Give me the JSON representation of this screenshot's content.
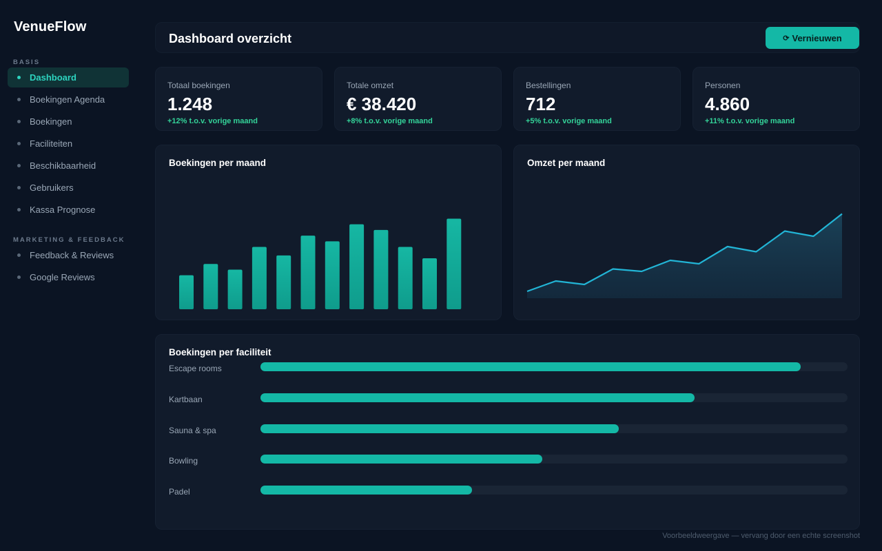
{
  "app": {
    "name": "VenueFlow"
  },
  "sidebar": {
    "sections": [
      {
        "label": "BASIS",
        "items": [
          "Dashboard",
          "Boekingen Agenda",
          "Boekingen",
          "Faciliteiten",
          "Beschikbaarheid",
          "Gebruikers",
          "Kassa Prognose"
        ]
      },
      {
        "label": "MARKETING & FEEDBACK",
        "items": [
          "Feedback & Reviews",
          "Google Reviews"
        ]
      }
    ],
    "active_item": "Dashboard"
  },
  "header": {
    "title": "Dashboard overzicht",
    "refresh_icon": "refresh-icon",
    "refresh_label": "Vernieuwen"
  },
  "stats": [
    {
      "label": "Totaal boekingen",
      "value": "1.248",
      "delta": "+12% t.o.v. vorige maand"
    },
    {
      "label": "Totale omzet",
      "value": "€ 38.420",
      "delta": "+8% t.o.v. vorige maand"
    },
    {
      "label": "Bestellingen",
      "value": "712",
      "delta": "+5% t.o.v. vorige maand"
    },
    {
      "label": "Personen",
      "value": "4.860",
      "delta": "+11% t.o.v. vorige maand"
    }
  ],
  "charts": {
    "bookings_title": "Boekingen per maand",
    "revenue_title": "Omzet per maand",
    "facility_title": "Boekingen per faciliteit"
  },
  "chart_data": [
    {
      "type": "bar",
      "title": "Boekingen per maand",
      "values": [
        6,
        8,
        7,
        11,
        9.5,
        13,
        12,
        15,
        14,
        11,
        9,
        16
      ],
      "ylim": [
        0,
        18
      ],
      "grid": false,
      "color": "#14b8a6"
    },
    {
      "type": "area",
      "title": "Omzet per maand",
      "values": [
        2,
        5,
        4,
        8.5,
        7.8,
        11,
        10,
        15,
        13.5,
        19.5,
        18,
        24.5
      ],
      "ylim": [
        0,
        30
      ],
      "grid": false,
      "color": "#22b5d6"
    },
    {
      "type": "bar",
      "orientation": "horizontal",
      "title": "Boekingen per faciliteit",
      "categories": [
        "Escape rooms",
        "Kartbaan",
        "Sauna & spa",
        "Bowling",
        "Padel"
      ],
      "values": [
        0.92,
        0.74,
        0.61,
        0.48,
        0.36
      ],
      "xlim": [
        0,
        1
      ],
      "color": "#14b8a6"
    }
  ],
  "footnote": "Voorbeeldweergave — vervang door een echte screenshot",
  "colors": {
    "accent": "#14b8a6",
    "positive": "#34d399",
    "line": "#22b5d6",
    "background": "#0b1423",
    "card": "#111b2b"
  }
}
